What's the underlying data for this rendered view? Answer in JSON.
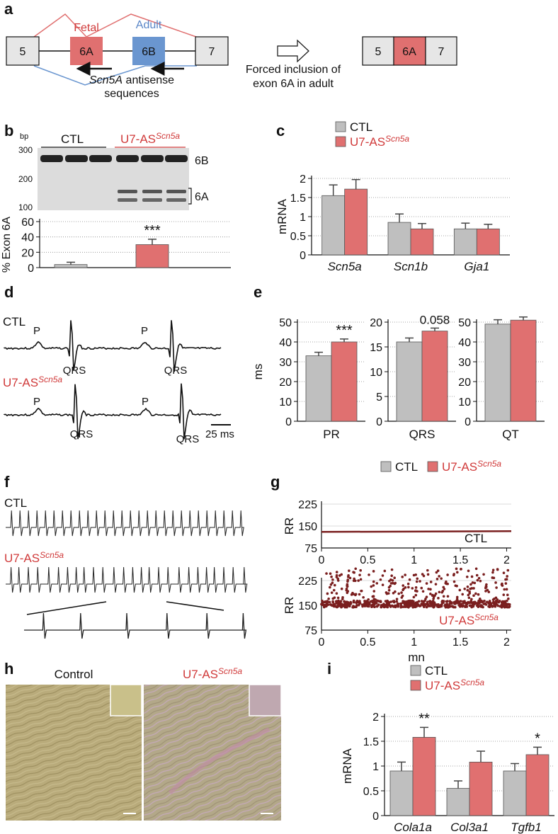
{
  "colors": {
    "ctl": "#bfbfbf",
    "treated": "#e07070",
    "fetal": "#e07070",
    "adult": "#6a96d0",
    "trace": "#111111",
    "rr": "#7a1f1f",
    "accent_red": "#d03a3a"
  },
  "panel_letters": {
    "a": "a",
    "b": "b",
    "c": "c",
    "d": "d",
    "e": "e",
    "f": "f",
    "g": "g",
    "h": "h",
    "i": "i"
  },
  "legend": {
    "ctl": "CTL",
    "treated_base": "U7-AS",
    "treated_sup": "Scn5a"
  },
  "panel_a": {
    "exon5": "5",
    "exon6a": "6A",
    "exon6b": "6B",
    "exon7": "7",
    "fetal": "Fetal",
    "adult": "Adult",
    "antisense_line1_italic": "Scn5A",
    "antisense_line1_rest": " antisense",
    "antisense_line2": "sequences",
    "forced_line1": "Forced inclusion of",
    "forced_line2": "exon 6A in adult",
    "result_exons": [
      "5",
      "6A",
      "7"
    ]
  },
  "panel_b": {
    "bp": "bp",
    "ladder": [
      "300",
      "200",
      "100"
    ],
    "band_6b": "6B",
    "band_6a": "6A",
    "group_ctl": "CTL",
    "ylabel": "% Exon 6A",
    "significance": "***"
  },
  "panel_d": {
    "ctl": "CTL",
    "p": "P",
    "qrs": "QRS",
    "scale": "25 ms"
  },
  "panel_f": {
    "ctl": "CTL"
  },
  "panel_h": {
    "control": "Control"
  },
  "chart_data": [
    {
      "panel": "b",
      "type": "bar",
      "categories": [
        "CTL",
        "U7-ASScn5a"
      ],
      "values": [
        4,
        30
      ],
      "errors": [
        3,
        7
      ],
      "ylabel": "% Exon 6A",
      "ylim": [
        0,
        60
      ],
      "yticks": [
        0,
        20,
        40,
        60
      ],
      "annotations": [
        "",
        "***"
      ],
      "grid": true
    },
    {
      "panel": "c",
      "type": "bar",
      "categories": [
        "Scn5a",
        "Scn1b",
        "Gja1"
      ],
      "series": [
        {
          "name": "CTL",
          "values": [
            1.55,
            0.85,
            0.68
          ],
          "errors": [
            0.28,
            0.22,
            0.15
          ]
        },
        {
          "name": "U7-ASScn5a",
          "values": [
            1.72,
            0.68,
            0.68
          ],
          "errors": [
            0.25,
            0.14,
            0.12
          ]
        }
      ],
      "ylabel": "mRNA",
      "ylim": [
        0,
        2
      ],
      "yticks": [
        "0",
        "0.5",
        "1",
        "1.5",
        "2"
      ],
      "grid": true
    },
    {
      "panel": "e-PR",
      "type": "bar",
      "categories": [
        "CTL",
        "U7-ASScn5a"
      ],
      "values": [
        33,
        40
      ],
      "errors": [
        1.8,
        1.5
      ],
      "xlabel": "PR",
      "ylabel": "ms",
      "ylim": [
        0,
        50
      ],
      "yticks": [
        0,
        10,
        20,
        30,
        40,
        50
      ],
      "annotations": [
        "",
        "***"
      ],
      "grid": true
    },
    {
      "panel": "e-QRS",
      "type": "bar",
      "categories": [
        "CTL",
        "U7-ASScn5a"
      ],
      "values": [
        16,
        18.2
      ],
      "errors": [
        0.8,
        0.6
      ],
      "xlabel": "QRS",
      "ylim": [
        0,
        20
      ],
      "yticks": [
        0,
        5,
        10,
        15,
        20
      ],
      "annotations": [
        "",
        "0.058"
      ],
      "grid": true
    },
    {
      "panel": "e-QT",
      "type": "bar",
      "categories": [
        "CTL",
        "U7-ASScn5a"
      ],
      "values": [
        49,
        51
      ],
      "errors": [
        2.2,
        1.6
      ],
      "xlabel": "QT",
      "ylim": [
        0,
        50
      ],
      "yticks": [
        0,
        10,
        20,
        30,
        40,
        50
      ],
      "grid": true
    },
    {
      "panel": "g-CTL",
      "type": "scatter",
      "ylabel": "RR",
      "series_label": "CTL",
      "xlim": [
        0,
        2.05
      ],
      "ylim": [
        75,
        225
      ],
      "xticks": [
        "0",
        "0.5",
        "1",
        "1.5",
        "2"
      ],
      "yticks": [
        75,
        150,
        225
      ],
      "baseline_rr": 130,
      "grid": true
    },
    {
      "panel": "g-U7",
      "type": "scatter",
      "ylabel": "RR",
      "xlabel": "mn",
      "xlim": [
        0,
        2.05
      ],
      "ylim": [
        75,
        225
      ],
      "xticks": [
        "0",
        "0.5",
        "1",
        "1.5",
        "2"
      ],
      "yticks": [
        75,
        150,
        225
      ],
      "baseline_rr": 152,
      "grid": true
    },
    {
      "panel": "i",
      "type": "bar",
      "categories": [
        "Cola1a",
        "Col3a1",
        "Tgfb1"
      ],
      "series": [
        {
          "name": "CTL",
          "values": [
            0.9,
            0.55,
            0.9
          ],
          "errors": [
            0.18,
            0.15,
            0.15
          ]
        },
        {
          "name": "U7-ASScn5a",
          "values": [
            1.58,
            1.08,
            1.23
          ],
          "errors": [
            0.2,
            0.22,
            0.15
          ]
        }
      ],
      "ylabel": "mRNA",
      "ylim": [
        0,
        2
      ],
      "yticks": [
        "0",
        "0.5",
        "1",
        "1.5",
        "2"
      ],
      "annotations": [
        "**",
        "",
        "*"
      ],
      "grid": true
    }
  ]
}
